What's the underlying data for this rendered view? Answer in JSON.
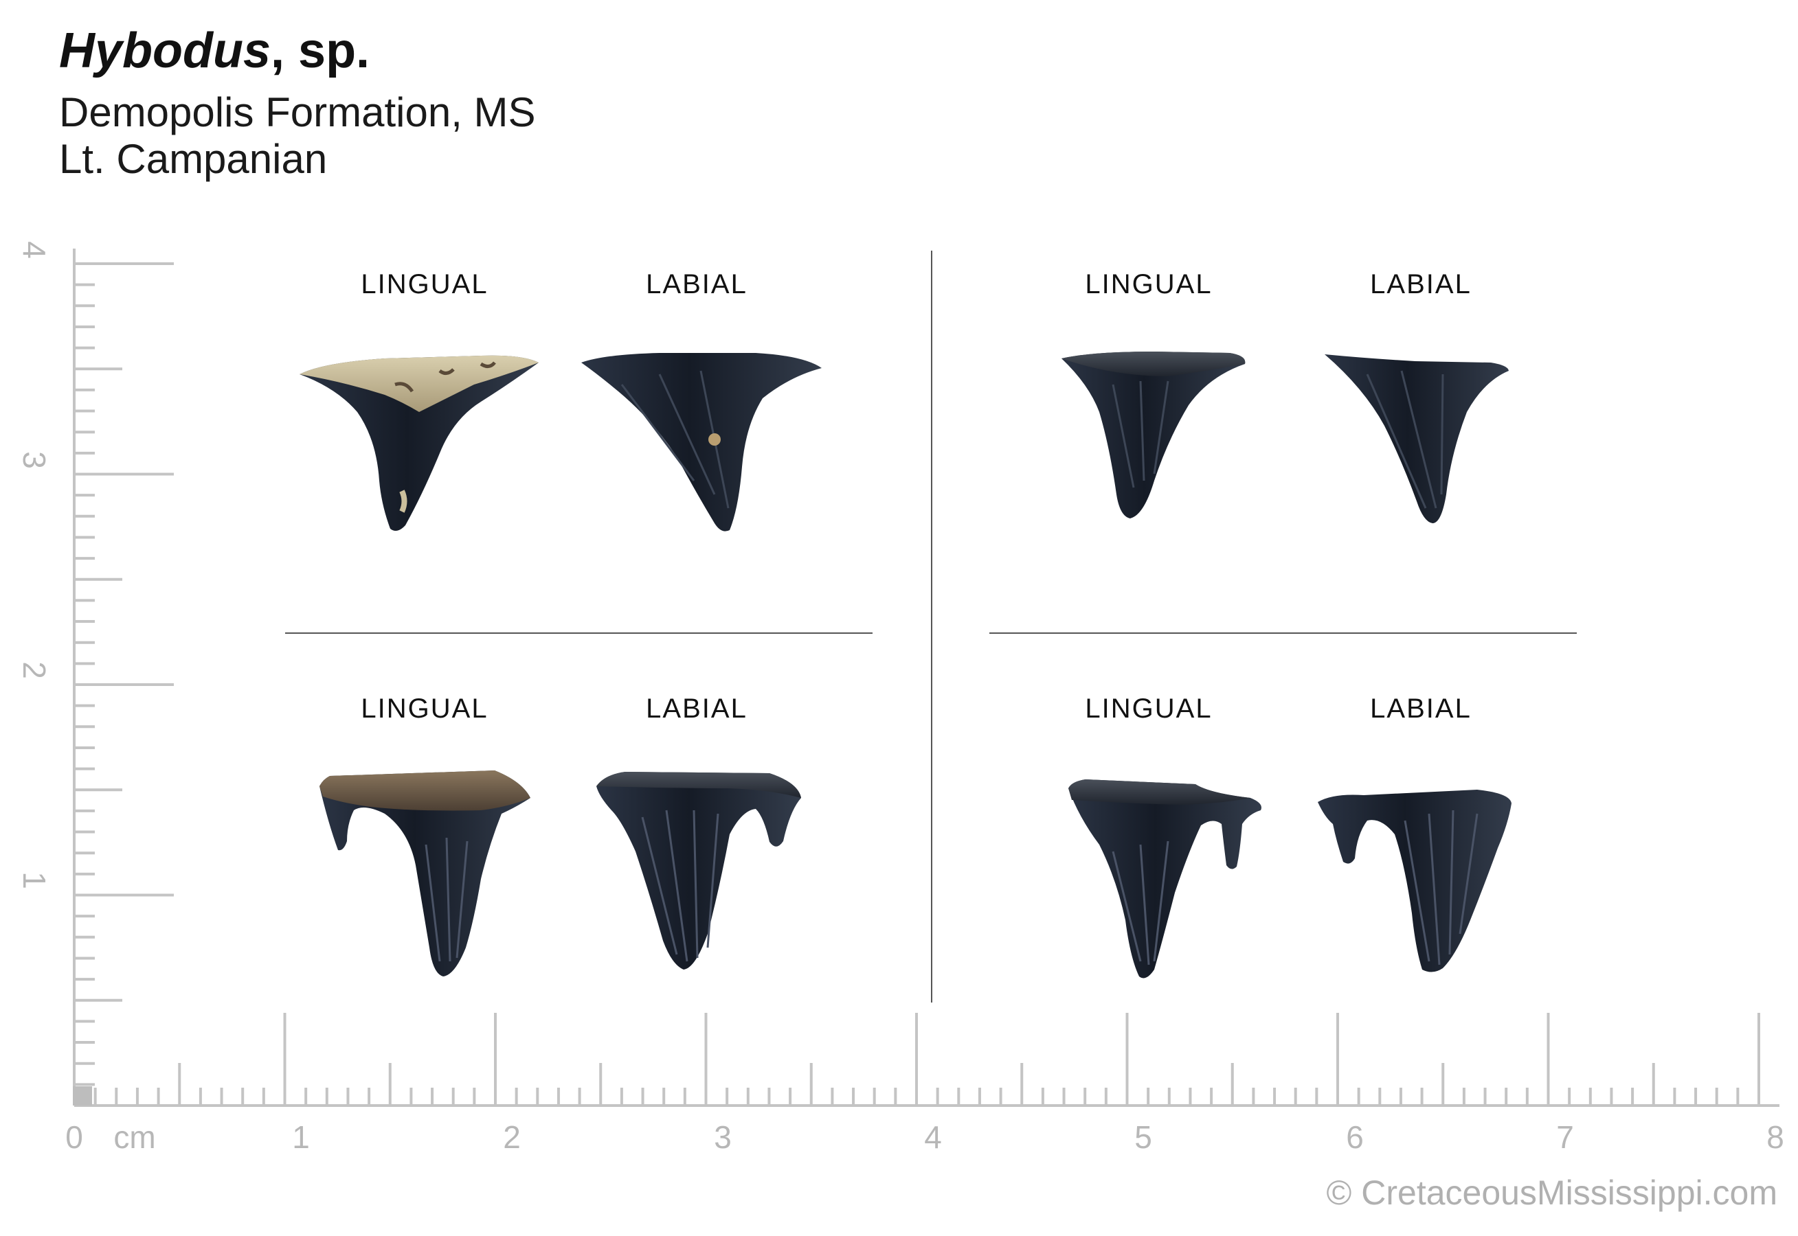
{
  "header": {
    "title_genus": "Hybodus",
    "title_rest": ", sp.",
    "formation": "Demopolis Formation, MS",
    "age": "Lt. Campanian"
  },
  "specimens": [
    {
      "id": "upper-left",
      "lingual_label": "LINGUAL",
      "labial_label": "LABIAL"
    },
    {
      "id": "upper-right",
      "lingual_label": "LINGUAL",
      "labial_label": "LABIAL"
    },
    {
      "id": "lower-left",
      "lingual_label": "LINGUAL",
      "labial_label": "LABIAL"
    },
    {
      "id": "lower-right",
      "lingual_label": "LINGUAL",
      "labial_label": "LABIAL"
    }
  ],
  "scale_bar": {
    "unit": "cm",
    "x_labels": [
      "0",
      "1",
      "2",
      "3",
      "4",
      "5",
      "6",
      "7",
      "8"
    ],
    "y_labels": [
      "1",
      "2",
      "3",
      "4"
    ]
  },
  "credit": "© CretaceousMississippi.com",
  "colors": {
    "ruler": "#c4c4c4",
    "tooth_dark": "#1c2330",
    "tooth_root_tan": "#cbbf9c",
    "tooth_root_brown": "#6d5a45"
  }
}
